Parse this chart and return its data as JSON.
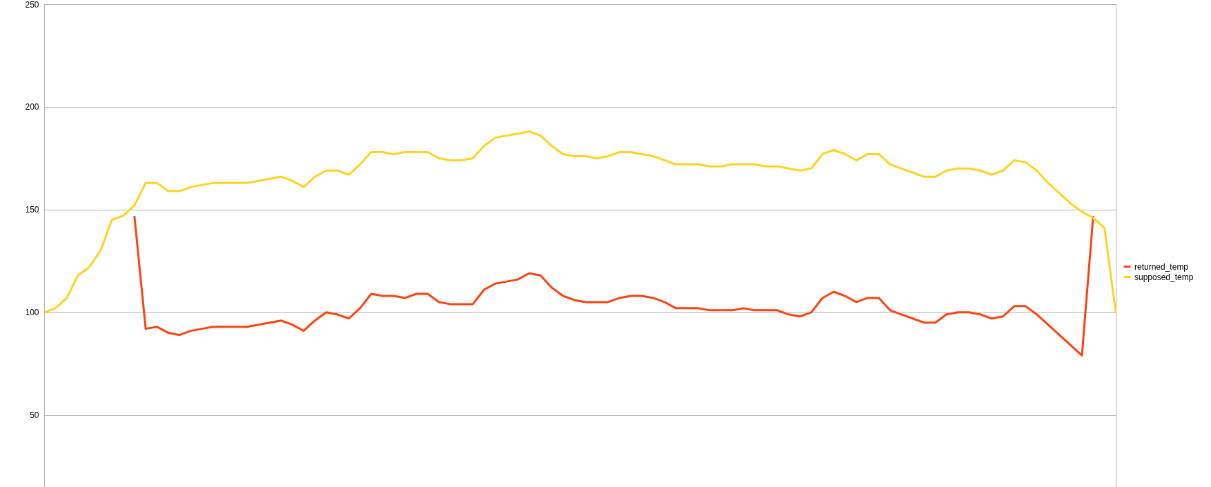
{
  "chart_data": {
    "type": "line",
    "categories": [
      null,
      null,
      null,
      null,
      null,
      null,
      null,
      null,
      null,
      null,
      null,
      null,
      null,
      null,
      null,
      null,
      null,
      null,
      null,
      null,
      null,
      null,
      null,
      null,
      null,
      null,
      null,
      null,
      null,
      null,
      null,
      null,
      null,
      null,
      null,
      null,
      null,
      null,
      null,
      null,
      null,
      null,
      null,
      null,
      null,
      null,
      null,
      null,
      null,
      null,
      null,
      null,
      null,
      null,
      null,
      null,
      null,
      null,
      null,
      null,
      null,
      null,
      null,
      null,
      null,
      null,
      null,
      null,
      null,
      null,
      null,
      null,
      null,
      null,
      null,
      null,
      null,
      null,
      null,
      null,
      null,
      null,
      null,
      null,
      null,
      null,
      null,
      null,
      null,
      null,
      null,
      null,
      null,
      null,
      null,
      null
    ],
    "series": [
      {
        "name": "returned_temp",
        "color": "#ff420e",
        "values": [
          null,
          null,
          null,
          null,
          null,
          null,
          null,
          null,
          147,
          92,
          93,
          90,
          89,
          91,
          92,
          93,
          93,
          93,
          93,
          94,
          95,
          96,
          94,
          91,
          96,
          100,
          99,
          97,
          102,
          109,
          108,
          108,
          107,
          109,
          109,
          105,
          104,
          104,
          104,
          111,
          114,
          115,
          116,
          119,
          118,
          112,
          108,
          106,
          105,
          105,
          105,
          107,
          108,
          108,
          107,
          105,
          102,
          102,
          102,
          101,
          101,
          101,
          102,
          101,
          101,
          101,
          99,
          98,
          100,
          107,
          110,
          108,
          105,
          107,
          107,
          101,
          99,
          97,
          95,
          95,
          99,
          100,
          100,
          99,
          97,
          98,
          103,
          103,
          99,
          94,
          89,
          84,
          79,
          147,
          null,
          null
        ]
      },
      {
        "name": "supposed_temp",
        "color": "#ffd320",
        "values": [
          100,
          102,
          107,
          118,
          122,
          130,
          145,
          147,
          152,
          163,
          163,
          159,
          159,
          161,
          162,
          163,
          163,
          163,
          163,
          164,
          165,
          166,
          164,
          161,
          166,
          169,
          169,
          167,
          172,
          178,
          178,
          177,
          178,
          178,
          178,
          175,
          174,
          174,
          175,
          181,
          185,
          186,
          187,
          188,
          186,
          181,
          177,
          176,
          176,
          175,
          176,
          178,
          178,
          177,
          176,
          174,
          172,
          172,
          172,
          171,
          171,
          172,
          172,
          172,
          171,
          171,
          170,
          169,
          170,
          177,
          179,
          177,
          174,
          177,
          177,
          172,
          170,
          168,
          166,
          166,
          169,
          170,
          170,
          169,
          167,
          169,
          174,
          173,
          169,
          163,
          158,
          153,
          149,
          146,
          141,
          100
        ]
      }
    ],
    "ylim": [
      15,
      250
    ],
    "yticks": [
      50,
      100,
      150,
      200,
      250
    ],
    "grid": "y",
    "legend": "right",
    "tick_labels": "y"
  }
}
